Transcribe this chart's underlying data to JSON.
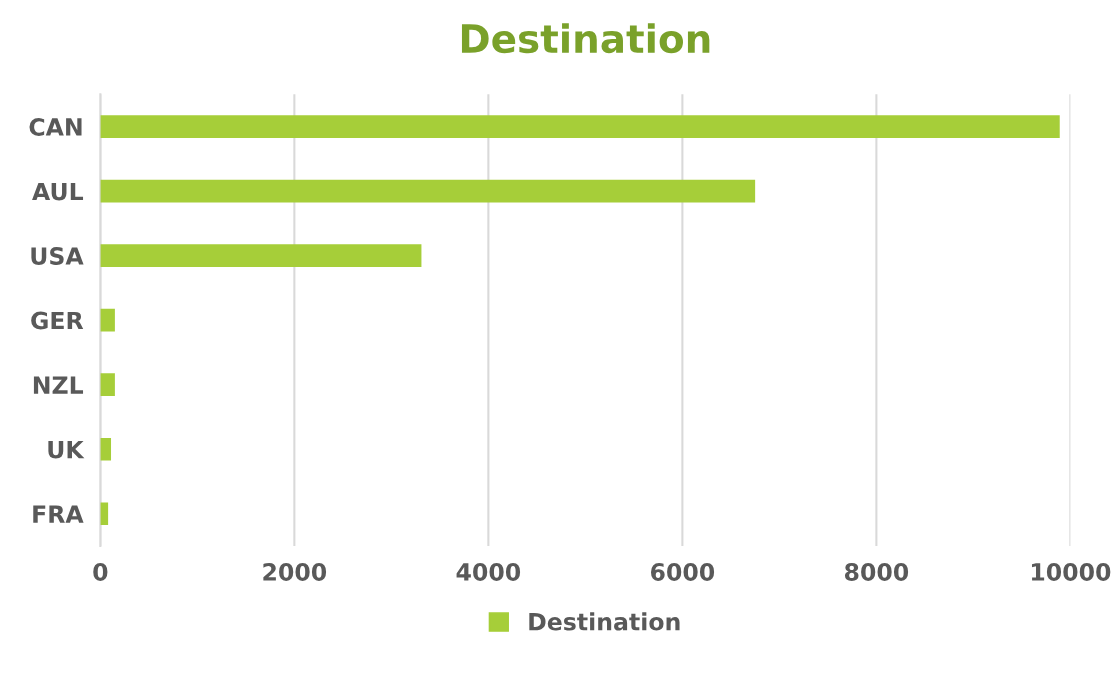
{
  "chart_data": {
    "type": "bar",
    "orientation": "horizontal",
    "title": "Destination",
    "categories": [
      "CAN",
      "AUL",
      "USA",
      "GER",
      "NZL",
      "UK",
      "FRA"
    ],
    "series": [
      {
        "name": "Destination",
        "color": "#a6ce39",
        "values": [
          9890,
          6750,
          3310,
          150,
          150,
          110,
          80
        ]
      }
    ],
    "xlim": [
      0,
      10000
    ],
    "xticks": [
      0,
      2000,
      4000,
      6000,
      8000,
      10000
    ],
    "grid": "x",
    "legend": "bottom"
  }
}
